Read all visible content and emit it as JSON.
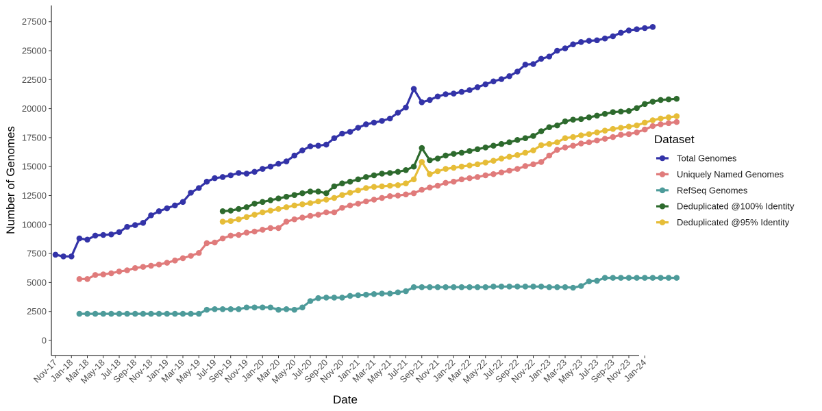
{
  "chart_data": {
    "type": "line",
    "xlabel": "Date",
    "ylabel": "Number of Genomes",
    "ylim": [
      -1200,
      28800
    ],
    "yticks": [
      0,
      2500,
      5000,
      7500,
      10000,
      12500,
      15000,
      17500,
      20000,
      22500,
      25000,
      27500
    ],
    "xtick_labels": [
      "Nov-17",
      "Jan-18",
      "Mar-18",
      "May-18",
      "Jul-18",
      "Sep-18",
      "Nov-18",
      "Jan-19",
      "Mar-19",
      "May-19",
      "Jul-19",
      "Sep-19",
      "Nov-19",
      "Jan-20",
      "Mar-20",
      "May-20",
      "Jul-20",
      "Sep-20",
      "Nov-20",
      "Jan-21",
      "Mar-21",
      "May-21",
      "Jul-21",
      "Sep-21",
      "Nov-21",
      "Jan-22",
      "Mar-22",
      "May-22",
      "Jul-22",
      "Sep-22",
      "Nov-22",
      "Jan-23",
      "Mar-23",
      "May-23",
      "Jul-23",
      "Sep-23",
      "Nov-23",
      "Jan-24"
    ],
    "x_start": "Nov-17",
    "grid": false,
    "legend": {
      "title": "Dataset",
      "position": "right"
    },
    "series": [
      {
        "name": "Total Genomes",
        "color": "#3333a8",
        "start": "Nov-17",
        "values": [
          7400,
          7250,
          7250,
          8800,
          8700,
          9050,
          9100,
          9150,
          9350,
          9800,
          9950,
          10150,
          10800,
          11150,
          11400,
          11650,
          11950,
          12750,
          13150,
          13700,
          14000,
          14100,
          14250,
          14450,
          14400,
          14550,
          14800,
          15000,
          15250,
          15450,
          15950,
          16400,
          16750,
          16800,
          16900,
          17450,
          17850,
          18000,
          18350,
          18650,
          18800,
          18950,
          19150,
          19650,
          20100,
          21700,
          20550,
          20750,
          21050,
          21250,
          21300,
          21450,
          21600,
          21850,
          22100,
          22350,
          22550,
          22800,
          23200,
          23800,
          23850,
          24300,
          24500,
          25000,
          25200,
          25550,
          25750,
          25850,
          25900,
          26050,
          26250,
          26550,
          26750,
          26850,
          26950,
          27050
        ]
      },
      {
        "name": "Uniquely Named Genomes",
        "color": "#e07b7b",
        "start": "Feb-18",
        "values": [
          5300,
          5300,
          5650,
          5700,
          5800,
          5950,
          6050,
          6250,
          6350,
          6450,
          6550,
          6700,
          6900,
          7100,
          7300,
          7550,
          8400,
          8450,
          8800,
          9050,
          9100,
          9300,
          9400,
          9550,
          9700,
          9700,
          10250,
          10450,
          10600,
          10750,
          10850,
          11050,
          11050,
          11450,
          11650,
          11800,
          12000,
          12150,
          12300,
          12450,
          12500,
          12600,
          12700,
          13000,
          13200,
          13350,
          13600,
          13700,
          13900,
          14000,
          14100,
          14250,
          14350,
          14500,
          14650,
          14800,
          15050,
          15200,
          15400,
          15950,
          16450,
          16650,
          16800,
          17000,
          17100,
          17250,
          17400,
          17550,
          17750,
          17800,
          17950,
          18200,
          18500,
          18650,
          18750,
          18850
        ]
      },
      {
        "name": "RefSeq Genomes",
        "color": "#4d9b9a",
        "start": "Feb-18",
        "values": [
          2300,
          2300,
          2300,
          2300,
          2300,
          2300,
          2300,
          2300,
          2300,
          2300,
          2300,
          2300,
          2300,
          2300,
          2300,
          2300,
          2650,
          2700,
          2700,
          2700,
          2700,
          2850,
          2850,
          2850,
          2850,
          2650,
          2700,
          2650,
          2850,
          3400,
          3650,
          3700,
          3700,
          3700,
          3850,
          3900,
          3950,
          4000,
          4050,
          4050,
          4150,
          4250,
          4600,
          4600,
          4600,
          4600,
          4600,
          4600,
          4600,
          4600,
          4600,
          4600,
          4650,
          4650,
          4650,
          4650,
          4650,
          4650,
          4650,
          4600,
          4600,
          4600,
          4550,
          4700,
          5100,
          5150,
          5400,
          5400,
          5400,
          5400,
          5400,
          5400,
          5400,
          5400,
          5400,
          5400
        ]
      },
      {
        "name": "Deduplicated @100% Identity",
        "color": "#2d6a2d",
        "start": "Aug-19",
        "values": [
          11150,
          11200,
          11350,
          11500,
          11800,
          11950,
          12100,
          12250,
          12400,
          12550,
          12700,
          12850,
          12850,
          12700,
          13300,
          13550,
          13700,
          13900,
          14100,
          14250,
          14400,
          14450,
          14550,
          14700,
          15000,
          16600,
          15550,
          15700,
          15950,
          16100,
          16200,
          16350,
          16500,
          16650,
          16800,
          16950,
          17100,
          17300,
          17450,
          17650,
          18050,
          18400,
          18550,
          18900,
          19050,
          19100,
          19250,
          19400,
          19550,
          19700,
          19750,
          19800,
          20050,
          20400,
          20600,
          20750,
          20800,
          20850
        ]
      },
      {
        "name": "Deduplicated @95% Identity",
        "color": "#e6bd38",
        "start": "Aug-19",
        "values": [
          10250,
          10300,
          10450,
          10650,
          10850,
          11050,
          11200,
          11350,
          11500,
          11650,
          11750,
          11850,
          12000,
          12150,
          12300,
          12550,
          12750,
          12950,
          13150,
          13250,
          13300,
          13350,
          13400,
          13550,
          13900,
          15400,
          14350,
          14600,
          14800,
          14900,
          15000,
          15100,
          15200,
          15350,
          15500,
          15700,
          15850,
          16000,
          16200,
          16400,
          16850,
          16950,
          17100,
          17450,
          17550,
          17700,
          17800,
          17950,
          18100,
          18250,
          18350,
          18450,
          18550,
          18800,
          19000,
          19150,
          19250,
          19350
        ]
      }
    ]
  }
}
